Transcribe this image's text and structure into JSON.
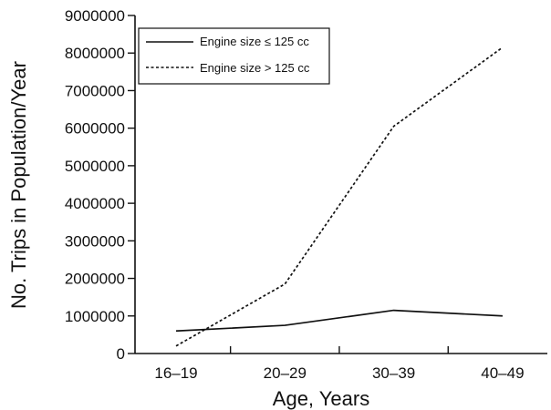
{
  "chart_data": {
    "type": "line",
    "categories": [
      "16–19",
      "20–29",
      "30–39",
      "40–49"
    ],
    "series": [
      {
        "name": "Engine size ≤ 125 cc",
        "values": [
          600000,
          750000,
          1150000,
          1000000
        ],
        "style": "solid",
        "color": "#111111"
      },
      {
        "name": "Engine size > 125 cc",
        "values": [
          200000,
          1850000,
          6050000,
          8150000
        ],
        "style": "dashed",
        "color": "#111111"
      }
    ],
    "title": "",
    "xlabel": "Age, Years",
    "ylabel": "No. Trips in Population/Year",
    "ylim": [
      0,
      9000000
    ],
    "yticks": [
      0,
      1000000,
      2000000,
      3000000,
      4000000,
      5000000,
      6000000,
      7000000,
      8000000,
      9000000
    ],
    "grid": false,
    "legend_position": "top-left"
  }
}
